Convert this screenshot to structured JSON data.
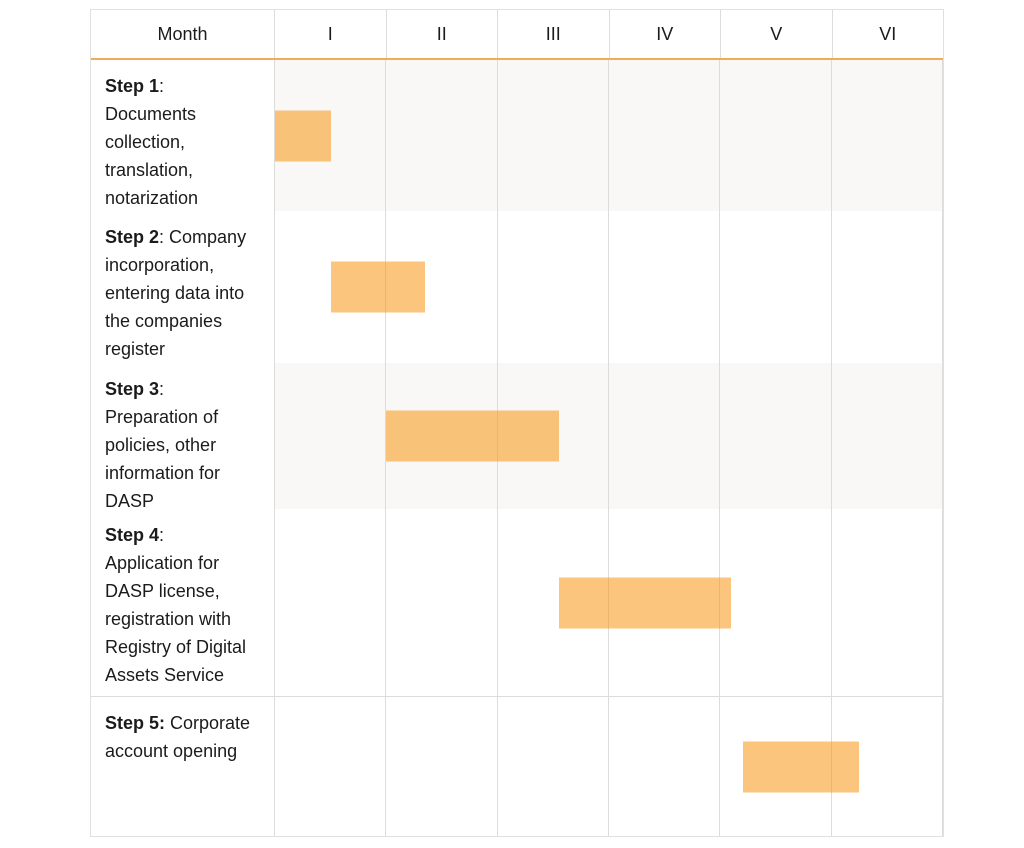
{
  "header": {
    "label": "Month",
    "months": [
      "I",
      "II",
      "III",
      "IV",
      "V",
      "VI"
    ]
  },
  "rows": [
    {
      "bold": "Step 1",
      "text": ":\nDocuments\ncollection,\ntranslation,\nnotarization"
    },
    {
      "bold": "Step 2",
      "text": ": Company\nincorporation,\nentering data into\nthe companies\nregister"
    },
    {
      "bold": "Step 3",
      "text": ":\nPreparation of\npolicies, other\ninformation for\nDASP"
    },
    {
      "bold": "Step 4",
      "text": ":\nApplication for\nDASP license,\nregistration with\nRegistry of Digital\nAssets Service"
    },
    {
      "bold": "Step 5:",
      "text": " Corporate\naccount opening"
    }
  ],
  "colors": {
    "bar_fill": "rgba(250,150,19,0.55)",
    "bar_apparent": "#FCC57D",
    "header_underline": "#F2AC55",
    "shaded_row": "#F9F8F7",
    "grid_line": "#DCDCDC",
    "outer_border": "#E0E0E0",
    "text": "#1B1B1B"
  },
  "chart_data": {
    "type": "bar",
    "variant": "gantt",
    "title": "",
    "xlabel": "Month",
    "categories": [
      "I",
      "II",
      "III",
      "IV",
      "V",
      "VI"
    ],
    "x_range_months": [
      0,
      6
    ],
    "grid": true,
    "legend": false,
    "tasks": [
      {
        "name": "Step 1: Documents collection, translation, notarization",
        "start_month": 0,
        "end_month": 0.5,
        "row_shaded": true
      },
      {
        "name": "Step 2: Company incorporation, entering data into the companies register",
        "start_month": 0.5,
        "end_month": 1.35,
        "row_shaded": false
      },
      {
        "name": "Step 3: Preparation of policies, other information for DASP",
        "start_month": 1.0,
        "end_month": 2.55,
        "row_shaded": true
      },
      {
        "name": "Step 4: Application for DASP license, registration with Registry of Digital Assets Service",
        "start_month": 2.55,
        "end_month": 4.1,
        "row_shaded": false
      },
      {
        "name": "Step 5: Corporate account opening",
        "start_month": 4.2,
        "end_month": 5.25,
        "row_shaded": false
      }
    ]
  }
}
